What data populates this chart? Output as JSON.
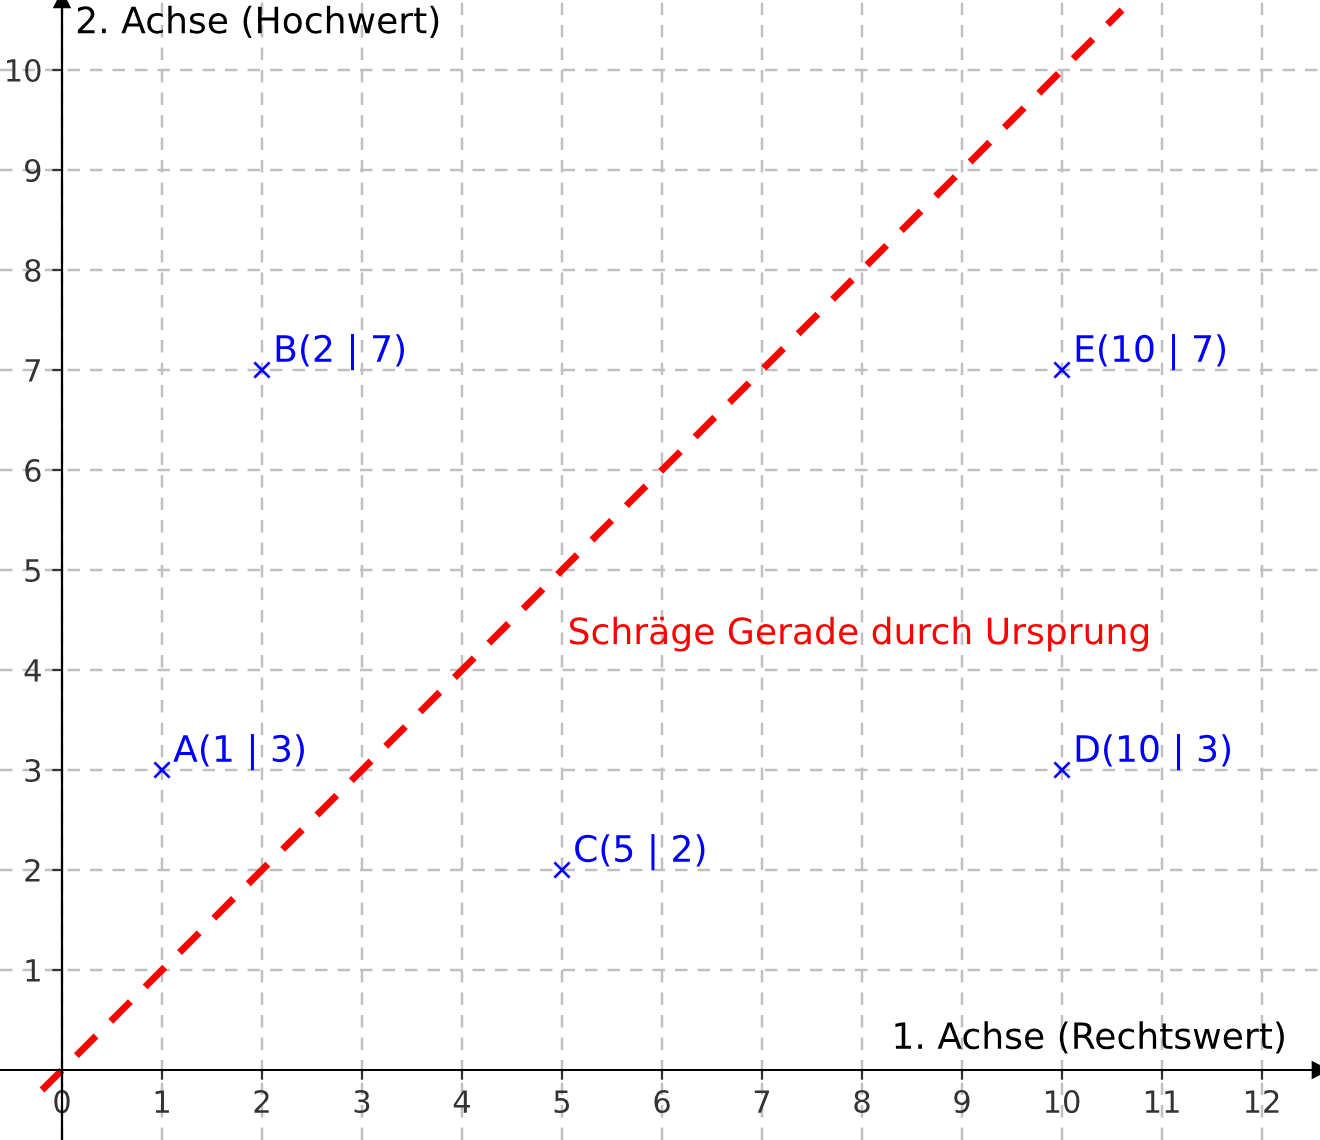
{
  "chart_data": {
    "type": "scatter",
    "xlabel": "1. Achse (Rechtswert)",
    "ylabel": "2. Achse (Hochwert)",
    "xlim": [
      -0.62,
      12.58
    ],
    "ylim": [
      -0.7,
      10.7
    ],
    "xticks": [
      0,
      1,
      2,
      3,
      4,
      5,
      6,
      7,
      8,
      9,
      10,
      11,
      12
    ],
    "yticks": [
      1,
      2,
      3,
      4,
      5,
      6,
      7,
      8,
      9,
      10
    ],
    "grid": true,
    "series": [
      {
        "type": "line",
        "color": "#ff0000",
        "line_style": "dashed",
        "marker": "none",
        "x": [
          -0.2,
          10.6
        ],
        "values": [
          -0.2,
          10.6
        ]
      },
      {
        "color": "#0000ff",
        "marker": "cross",
        "x": [
          1,
          2,
          5,
          10,
          10
        ],
        "values": [
          3,
          7,
          2,
          3,
          7
        ],
        "value_labels": [
          "A(1 | 3)",
          "B(2 | 7)",
          "C(5 | 2)",
          "D(10 | 3)",
          "E(10 | 7)"
        ]
      }
    ],
    "annotations": [
      "Schräge Gerade durch Ursprung"
    ]
  }
}
